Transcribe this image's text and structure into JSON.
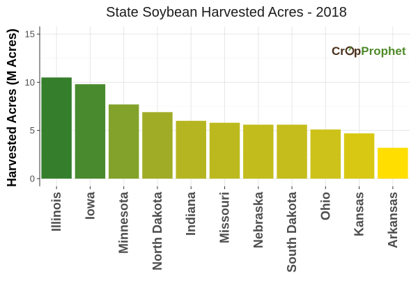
{
  "chart_data": {
    "type": "bar",
    "title": "State Soybean Harvested Acres - 2018",
    "xlabel": "",
    "ylabel": "Harvested Acres (M Acres)",
    "categories": [
      "Illinois",
      "Iowa",
      "Minnesota",
      "North Dakota",
      "Indiana",
      "Missouri",
      "Nebraska",
      "South Dakota",
      "Ohio",
      "Kansas",
      "Arkansas"
    ],
    "values": [
      10.5,
      9.8,
      7.7,
      6.9,
      6.0,
      5.8,
      5.6,
      5.6,
      5.1,
      4.7,
      3.2
    ],
    "colors": [
      "#357e2c",
      "#4a8a2e",
      "#83a22b",
      "#a0ac25",
      "#b5b521",
      "#bcb91e",
      "#c2bc1d",
      "#c4bd1c",
      "#ccc21a",
      "#d9c813",
      "#ffde00"
    ],
    "yticks": [
      0,
      5,
      10,
      15
    ],
    "ylim": [
      -0.8,
      15.8
    ],
    "grid": true,
    "legend": "none"
  },
  "logo": {
    "part1": "Cr",
    "part2": "p",
    "part3": "Prophet",
    "colors": {
      "crop": "#4a2f1b",
      "prophet": "#4f8a2a"
    }
  }
}
